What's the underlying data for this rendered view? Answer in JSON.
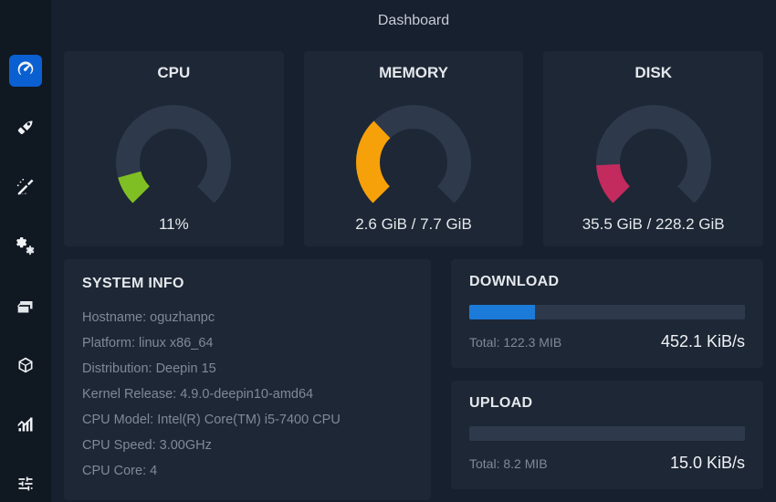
{
  "colors": {
    "bg": "#17202e",
    "sidebar_bg": "#101822",
    "card_bg": "#1d2735",
    "accent": "#0b60d1",
    "text_muted": "#7f8998",
    "gauge_track": "#2e3a4b",
    "progress_fill": "#1c7bd8"
  },
  "page_title": "Dashboard",
  "sidebar": {
    "items": [
      {
        "name": "dashboard",
        "active": true
      },
      {
        "name": "startup",
        "active": false
      },
      {
        "name": "cleaner",
        "active": false
      },
      {
        "name": "services",
        "active": false
      },
      {
        "name": "processes",
        "active": false
      },
      {
        "name": "packages",
        "active": false
      },
      {
        "name": "resources",
        "active": false
      },
      {
        "name": "settings",
        "active": false
      }
    ]
  },
  "gauges": {
    "cpu": {
      "title": "CPU",
      "value_text": "11%",
      "fraction": 0.11,
      "arc_color": "#80bf23",
      "track_color": "#2e3a4b",
      "stroke_width": 26
    },
    "memory": {
      "title": "MEMORY",
      "value_text": "2.6 GiB / 7.7 GiB",
      "fraction": 0.338,
      "arc_color": "#f6a10a",
      "track_color": "#2e3a4b",
      "stroke_width": 26
    },
    "disk": {
      "title": "DISK",
      "value_text": "35.5 GiB / 228.2 GiB",
      "fraction": 0.156,
      "arc_color": "#c32a5e",
      "track_color": "#2e3a4b",
      "stroke_width": 26
    }
  },
  "sysinfo": {
    "title": "SYSTEM INFO",
    "rows": [
      "Hostname: oguzhanpc",
      "Platform: linux x86_64",
      "Distribution: Deepin 15",
      "Kernel Release: 4.9.0-deepin10-amd64",
      "CPU Model: Intel(R) Core(TM) i5-7400 CPU",
      "CPU Speed: 3.00GHz",
      "CPU Core: 4"
    ]
  },
  "network": {
    "download": {
      "title": "DOWNLOAD",
      "progress_pct": 24,
      "total_text": "Total: 122.3 MIB",
      "rate_text": "452.1 KiB/s"
    },
    "upload": {
      "title": "UPLOAD",
      "progress_pct": 0,
      "total_text": "Total: 8.2 MIB",
      "rate_text": "15.0 KiB/s"
    }
  }
}
